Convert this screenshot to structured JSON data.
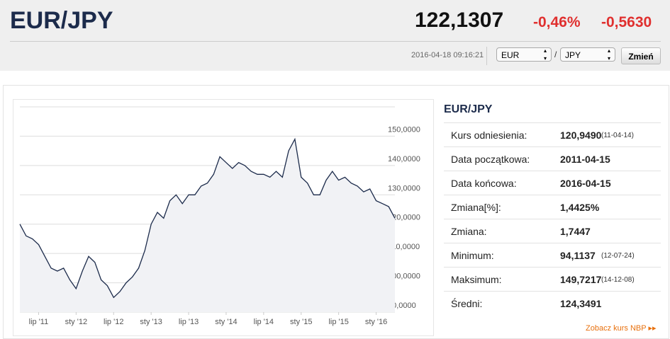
{
  "header": {
    "title": "EUR/JPY",
    "price": "122,1307",
    "change_pct": "-0,46%",
    "change": "-0,5630"
  },
  "controls": {
    "timestamp": "2016-04-18 09:16:21",
    "from": "EUR",
    "separator": "/",
    "to": "JPY",
    "button": "Zmień"
  },
  "chart_data": {
    "type": "line",
    "categories": [
      "2011-04",
      "2011-05",
      "2011-06",
      "2011-07",
      "2011-08",
      "2011-09",
      "2011-10",
      "2011-11",
      "2011-12",
      "2012-01",
      "2012-02",
      "2012-03",
      "2012-04",
      "2012-05",
      "2012-06",
      "2012-07",
      "2012-08",
      "2012-09",
      "2012-10",
      "2012-11",
      "2012-12",
      "2013-01",
      "2013-02",
      "2013-03",
      "2013-04",
      "2013-05",
      "2013-06",
      "2013-07",
      "2013-08",
      "2013-09",
      "2013-10",
      "2013-11",
      "2013-12",
      "2014-01",
      "2014-02",
      "2014-03",
      "2014-04",
      "2014-05",
      "2014-06",
      "2014-07",
      "2014-08",
      "2014-09",
      "2014-10",
      "2014-11",
      "2014-12",
      "2015-01",
      "2015-02",
      "2015-03",
      "2015-04",
      "2015-05",
      "2015-06",
      "2015-07",
      "2015-08",
      "2015-09",
      "2015-10",
      "2015-11",
      "2015-12",
      "2016-01",
      "2016-02",
      "2016-03",
      "2016-04"
    ],
    "series": [
      {
        "name": "EUR/JPY",
        "color": "#1c2b4b",
        "values": [
          120,
          116,
          115,
          113,
          109,
          105,
          104,
          105,
          101,
          98,
          104,
          109,
          107,
          101,
          99,
          95,
          97,
          100,
          102,
          105,
          111,
          120,
          124,
          122,
          128,
          130,
          127,
          130,
          130,
          133,
          134,
          137,
          143,
          141,
          139,
          141,
          140,
          138,
          137,
          137,
          136,
          138,
          136,
          145,
          149,
          136,
          134,
          130,
          130,
          135,
          138,
          135,
          136,
          134,
          133,
          131,
          132,
          128,
          127,
          126,
          122
        ]
      }
    ],
    "xticks": [
      {
        "value": "2011-07",
        "label": "lip '11"
      },
      {
        "value": "2012-01",
        "label": "sty '12"
      },
      {
        "value": "2012-07",
        "label": "lip '12"
      },
      {
        "value": "2013-01",
        "label": "sty '13"
      },
      {
        "value": "2013-07",
        "label": "lip '13"
      },
      {
        "value": "2014-01",
        "label": "sty '14"
      },
      {
        "value": "2014-07",
        "label": "lip '14"
      },
      {
        "value": "2015-01",
        "label": "sty '15"
      },
      {
        "value": "2015-07",
        "label": "lip '15"
      },
      {
        "value": "2016-01",
        "label": "sty '16"
      }
    ],
    "ylim": [
      90,
      160
    ],
    "yticks": [
      {
        "value": 90,
        "label": "90,0000"
      },
      {
        "value": 100,
        "label": "100,0000"
      },
      {
        "value": 110,
        "label": "110,0000"
      },
      {
        "value": 120,
        "label": "120,0000"
      },
      {
        "value": 130,
        "label": "130,0000"
      },
      {
        "value": 140,
        "label": "140,0000"
      },
      {
        "value": 150,
        "label": "150,0000"
      }
    ],
    "grid": true
  },
  "stats": {
    "title": "EUR/JPY",
    "rows": [
      {
        "label": "Kurs odniesienia:",
        "value": "120,9490",
        "note": "(11-04-14)"
      },
      {
        "label": "Data początkowa:",
        "value": "2011-04-15"
      },
      {
        "label": "Data końcowa:",
        "value": "2016-04-15"
      },
      {
        "label": "Zmiana[%]:",
        "value": "1,4425%"
      },
      {
        "label": "Zmiana:",
        "value": "1,7447"
      },
      {
        "label": "Minimum:",
        "value": "94,1137",
        "note": "(12-07-24)"
      },
      {
        "label": "Maksimum:",
        "value": "149,7217",
        "note": "(14-12-08)"
      },
      {
        "label": "Średni:",
        "value": "124,3491"
      }
    ],
    "link": "Zobacz kurs NBP"
  }
}
